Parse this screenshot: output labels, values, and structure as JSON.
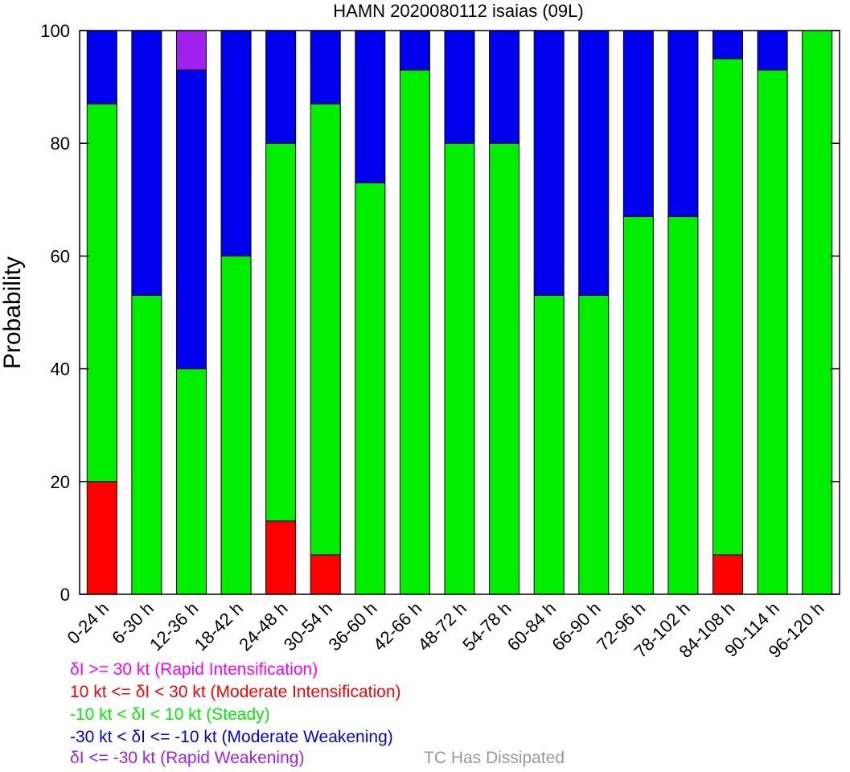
{
  "chart_data": {
    "type": "bar",
    "stacked": true,
    "title": "HAMN 2020080112 isaias (09L)",
    "xlabel": "",
    "ylabel": "Probability",
    "ylim": [
      0,
      100
    ],
    "yticks": [
      "0",
      "20",
      "40",
      "60",
      "80",
      "100"
    ],
    "grid": false,
    "categories": [
      "0-24 h",
      "6-30 h",
      "12-36 h",
      "18-42 h",
      "24-48 h",
      "30-54 h",
      "36-60 h",
      "42-66 h",
      "48-72 h",
      "54-78 h",
      "60-84 h",
      "66-90 h",
      "72-96 h",
      "78-102 h",
      "84-108 h",
      "90-114 h",
      "96-120 h"
    ],
    "series": [
      {
        "key": "moderate_intensification",
        "color": "#ff0000",
        "values": [
          20,
          0,
          0,
          0,
          13,
          7,
          0,
          0,
          0,
          0,
          0,
          0,
          0,
          0,
          7,
          0,
          0
        ]
      },
      {
        "key": "steady",
        "color": "#00ee00",
        "values": [
          67,
          53,
          40,
          60,
          67,
          80,
          73,
          93,
          80,
          80,
          53,
          53,
          67,
          67,
          88,
          93,
          100
        ]
      },
      {
        "key": "moderate_weakening",
        "color": "#0000ee",
        "values": [
          13,
          47,
          53,
          40,
          20,
          13,
          27,
          7,
          20,
          20,
          47,
          47,
          33,
          33,
          5,
          7,
          0
        ]
      },
      {
        "key": "rapid_weakening",
        "color": "#a020f0",
        "values": [
          0,
          0,
          7,
          0,
          0,
          0,
          0,
          0,
          0,
          0,
          0,
          0,
          0,
          0,
          0,
          0,
          0
        ]
      }
    ],
    "legend": [
      {
        "key": "rapid_intensification",
        "text": "δI >= 30 kt (Rapid Intensification)",
        "color": "#ff00ff"
      },
      {
        "key": "moderate_intensification",
        "text": "10 kt <= δI < 30 kt (Moderate Intensification)",
        "color": "#ff0000"
      },
      {
        "key": "steady",
        "text": "-10 kt < δI < 10 kt (Steady)",
        "color": "#00ee00"
      },
      {
        "key": "moderate_weakening",
        "text": "-30 kt < δI <= -10 kt (Moderate Weakening)",
        "color": "#0000ee"
      },
      {
        "key": "rapid_weakening",
        "text": "δI <= -30 kt (Rapid Weakening)",
        "color": "#a020f0"
      },
      {
        "key": "dissipated",
        "text": "TC Has Dissipated",
        "color": "#999999"
      }
    ]
  }
}
